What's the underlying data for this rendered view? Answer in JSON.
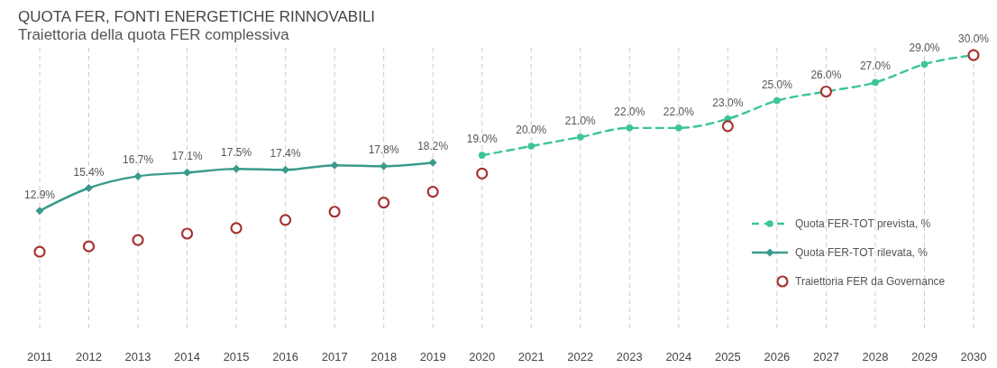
{
  "chart_data": {
    "type": "line",
    "title": "QUOTA FER, FONTI ENERGETICHE RINNOVABILI",
    "subtitle": "Traiettoria della quota FER complessiva",
    "categories": [
      "2011",
      "2012",
      "2013",
      "2014",
      "2015",
      "2016",
      "2017",
      "2018",
      "2019",
      "2020",
      "2021",
      "2022",
      "2023",
      "2024",
      "2025",
      "2026",
      "2027",
      "2028",
      "2029",
      "2030"
    ],
    "tick_labels": "x",
    "grid": "x",
    "legend": "bottom right",
    "series": [
      {
        "name": "Quota FER-TOT prevista, %",
        "color": "#3cc49a",
        "line_style": "dashed",
        "marker": "circle",
        "values": [
          null,
          null,
          null,
          null,
          null,
          null,
          null,
          null,
          null,
          19.0,
          20.0,
          21.0,
          22.0,
          22.0,
          23.0,
          25.0,
          26.0,
          27.0,
          29.0,
          30.0
        ],
        "value_labels": [
          null,
          null,
          null,
          null,
          null,
          null,
          null,
          null,
          null,
          "19.0%",
          "20.0%",
          "21.0%",
          "22.0%",
          "22.0%",
          "23.0%",
          "25.0%",
          "26.0%",
          "27.0%",
          "29.0%",
          "30.0%"
        ]
      },
      {
        "name": "Quota FER-TOT rilevata, %",
        "color": "#3a9a8c",
        "line_style": "solid",
        "marker": "diamond",
        "values": [
          12.9,
          15.4,
          16.7,
          17.1,
          17.5,
          17.4,
          17.9,
          17.8,
          18.2,
          null,
          null,
          null,
          null,
          null,
          null,
          null,
          null,
          null,
          null,
          null
        ],
        "value_labels": [
          "12.9%",
          "15.4%",
          "16.7%",
          "17.1%",
          "17.5%",
          "17.4%",
          null,
          "17.8%",
          "18.2%",
          null,
          null,
          null,
          null,
          null,
          null,
          null,
          null,
          null,
          null,
          null
        ]
      },
      {
        "name": "Traiettoria FER da Governance",
        "type": "scatter",
        "color": "#a83232",
        "marker": "circle",
        "values": [
          8.4,
          9.0,
          9.7,
          10.4,
          11.0,
          11.9,
          12.8,
          13.8,
          15.0,
          17.0,
          null,
          null,
          null,
          null,
          22.2,
          null,
          26.0,
          null,
          null,
          30.0
        ]
      }
    ]
  }
}
